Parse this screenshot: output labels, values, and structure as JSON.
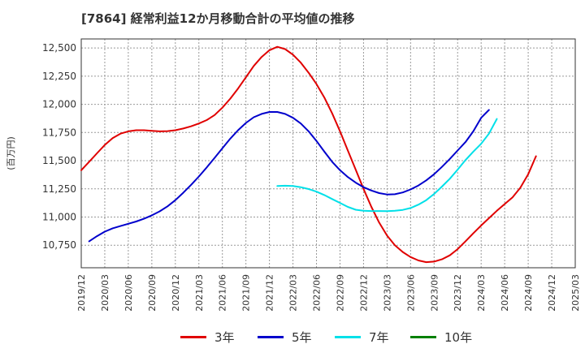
{
  "chart_data": {
    "type": "line",
    "title": "[7864]  経常利益12か月移動合計の平均値の推移",
    "ylabel": "(百万円)",
    "xlabel": "",
    "ylim": [
      10550,
      12580
    ],
    "yticks": [
      10750,
      11000,
      11250,
      11500,
      11750,
      12000,
      12250,
      12500
    ],
    "ytick_labels": [
      "10,750",
      "11,000",
      "11,250",
      "11,500",
      "11,750",
      "12,000",
      "12,250",
      "12,500"
    ],
    "x_tick_labels": [
      "2019/12",
      "2020/03",
      "2020/06",
      "2020/09",
      "2020/12",
      "2021/03",
      "2021/06",
      "2021/09",
      "2021/12",
      "2022/03",
      "2022/06",
      "2022/09",
      "2022/12",
      "2023/03",
      "2023/06",
      "2023/09",
      "2023/12",
      "2024/03",
      "2024/06",
      "2024/09",
      "2024/12",
      "2025/03"
    ],
    "grid": true,
    "legend_position": "bottom",
    "series": [
      {
        "name": "3年",
        "color": "#e00000",
        "start_month": 0,
        "values": [
          11415,
          11490,
          11565,
          11640,
          11700,
          11740,
          11760,
          11770,
          11770,
          11765,
          11760,
          11762,
          11770,
          11785,
          11805,
          11830,
          11860,
          11905,
          11970,
          12050,
          12140,
          12240,
          12340,
          12420,
          12480,
          12510,
          12490,
          12440,
          12370,
          12280,
          12180,
          12060,
          11920,
          11760,
          11590,
          11420,
          11250,
          11090,
          10950,
          10835,
          10750,
          10690,
          10645,
          10615,
          10600,
          10605,
          10625,
          10660,
          10715,
          10785,
          10855,
          10925,
          10990,
          11055,
          11115,
          11175,
          11260,
          11380,
          11540
        ]
      },
      {
        "name": "5年",
        "color": "#0000cc",
        "start_month": 1,
        "values": [
          10785,
          10830,
          10870,
          10900,
          10920,
          10940,
          10960,
          10985,
          11015,
          11050,
          11095,
          11150,
          11215,
          11285,
          11360,
          11440,
          11525,
          11610,
          11695,
          11770,
          11835,
          11885,
          11915,
          11932,
          11932,
          11915,
          11880,
          11830,
          11760,
          11675,
          11580,
          11490,
          11415,
          11355,
          11305,
          11265,
          11235,
          11212,
          11200,
          11202,
          11218,
          11245,
          11280,
          11325,
          11380,
          11445,
          11515,
          11590,
          11665,
          11760,
          11880,
          11950
        ]
      },
      {
        "name": "7年",
        "color": "#00e0e8",
        "start_month": 25,
        "values": [
          11275,
          11278,
          11275,
          11265,
          11248,
          11225,
          11195,
          11160,
          11125,
          11090,
          11065,
          11055,
          11053,
          11053,
          11052,
          11055,
          11063,
          11080,
          11110,
          11150,
          11205,
          11270,
          11340,
          11420,
          11505,
          11580,
          11650,
          11740,
          11870
        ]
      },
      {
        "name": "10年",
        "color": "#008000",
        "start_month": 0,
        "values": []
      }
    ]
  }
}
